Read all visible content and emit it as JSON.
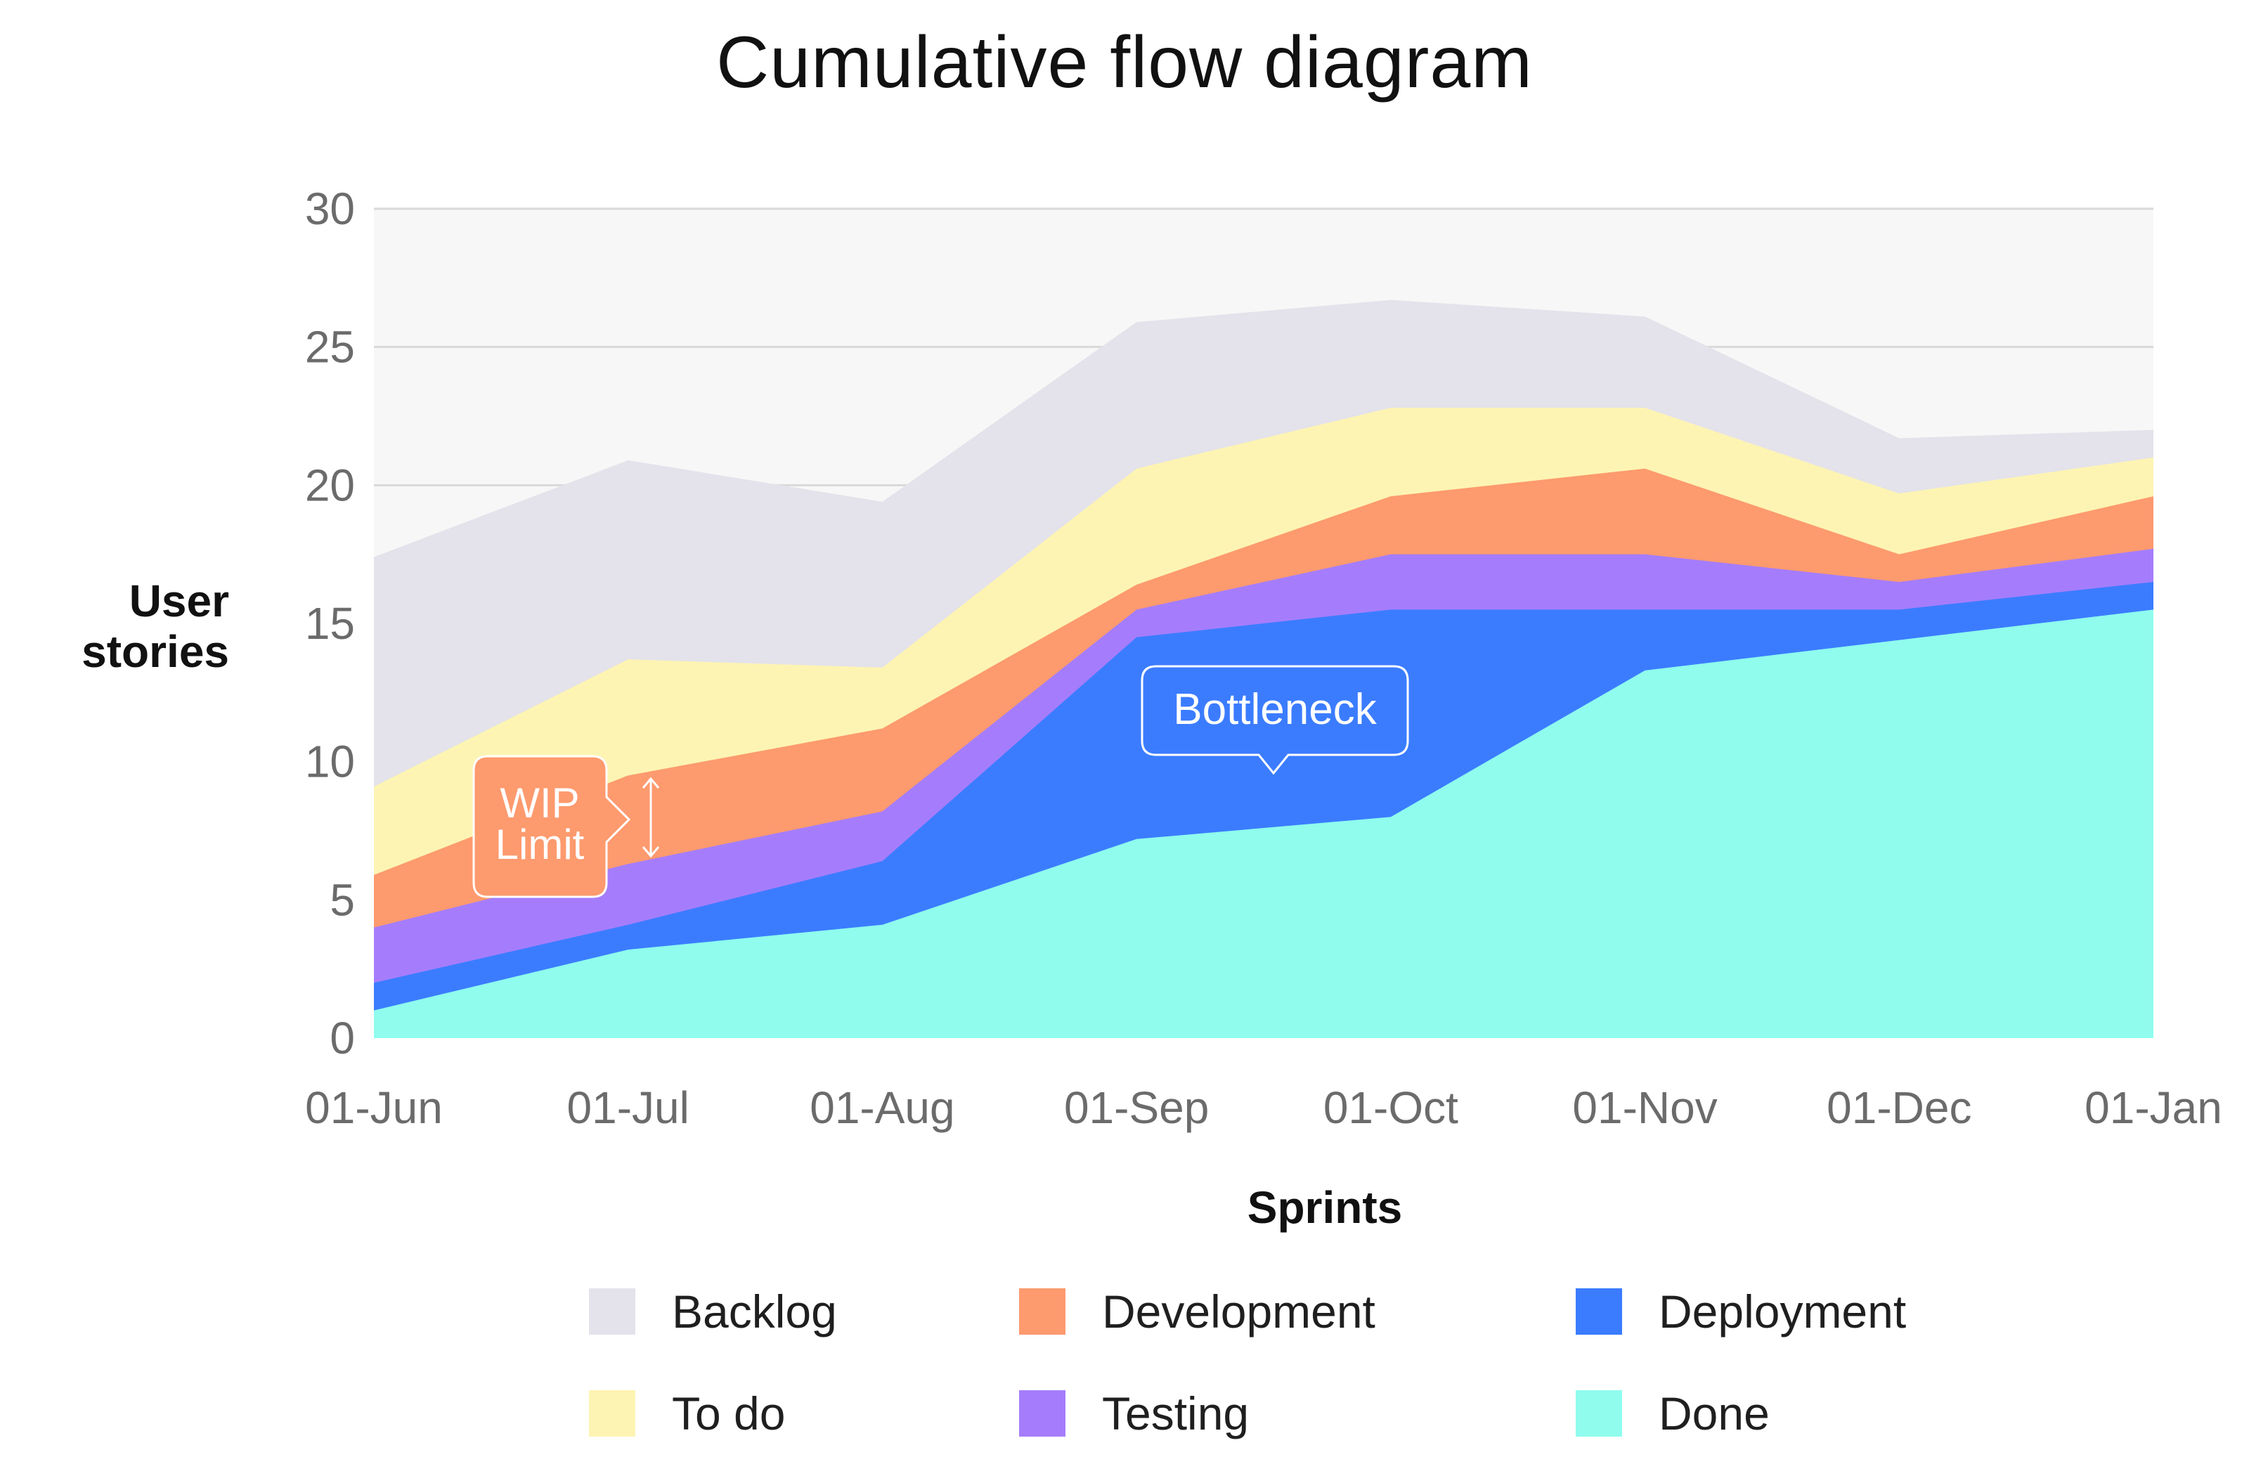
{
  "chart_data": {
    "type": "area",
    "stacked": true,
    "title": "Cumulative flow diagram",
    "xlabel": "Sprints",
    "ylabel": "User stories",
    "ylim": [
      0,
      30
    ],
    "yticks": [
      "0",
      "5",
      "10",
      "15",
      "20",
      "25",
      "30"
    ],
    "categories": [
      "01-Jun",
      "01-Jul",
      "01-Aug",
      "01-Sep",
      "01-Oct",
      "01-Nov",
      "01-Dec",
      "01-Jan"
    ],
    "grid": true,
    "legend_position": "bottom",
    "series": [
      {
        "name": "Done",
        "color": "#8ffcee",
        "values": [
          1,
          3.2,
          4.1,
          7.2,
          8,
          13.3,
          14.4,
          15.5
        ]
      },
      {
        "name": "Deployment",
        "color": "#3b7cff",
        "values": [
          1,
          0.9,
          2.3,
          7.3,
          7.5,
          2.2,
          1.1,
          1
        ]
      },
      {
        "name": "Testing",
        "color": "#a57dfc",
        "values": [
          2,
          2.2,
          1.8,
          1,
          2,
          2,
          1,
          1.2
        ]
      },
      {
        "name": "Development",
        "color": "#fd9a6e",
        "values": [
          1.9,
          3.2,
          3,
          0.9,
          2.1,
          3.1,
          1,
          1.9
        ]
      },
      {
        "name": "To do",
        "color": "#fdf4b3",
        "values": [
          3.2,
          4.2,
          2.2,
          4.2,
          3.2,
          2.2,
          2.2,
          1.4
        ]
      },
      {
        "name": "Backlog",
        "color": "#e4e2ea",
        "values": [
          8.3,
          7.2,
          6,
          5.3,
          3.9,
          3.3,
          2,
          1
        ]
      }
    ],
    "annotations": [
      {
        "text": "Bottleneck",
        "color": "#3b7cff"
      },
      {
        "lines": [
          "WIP",
          "Limit"
        ],
        "color": "#fd9a6e"
      }
    ]
  }
}
